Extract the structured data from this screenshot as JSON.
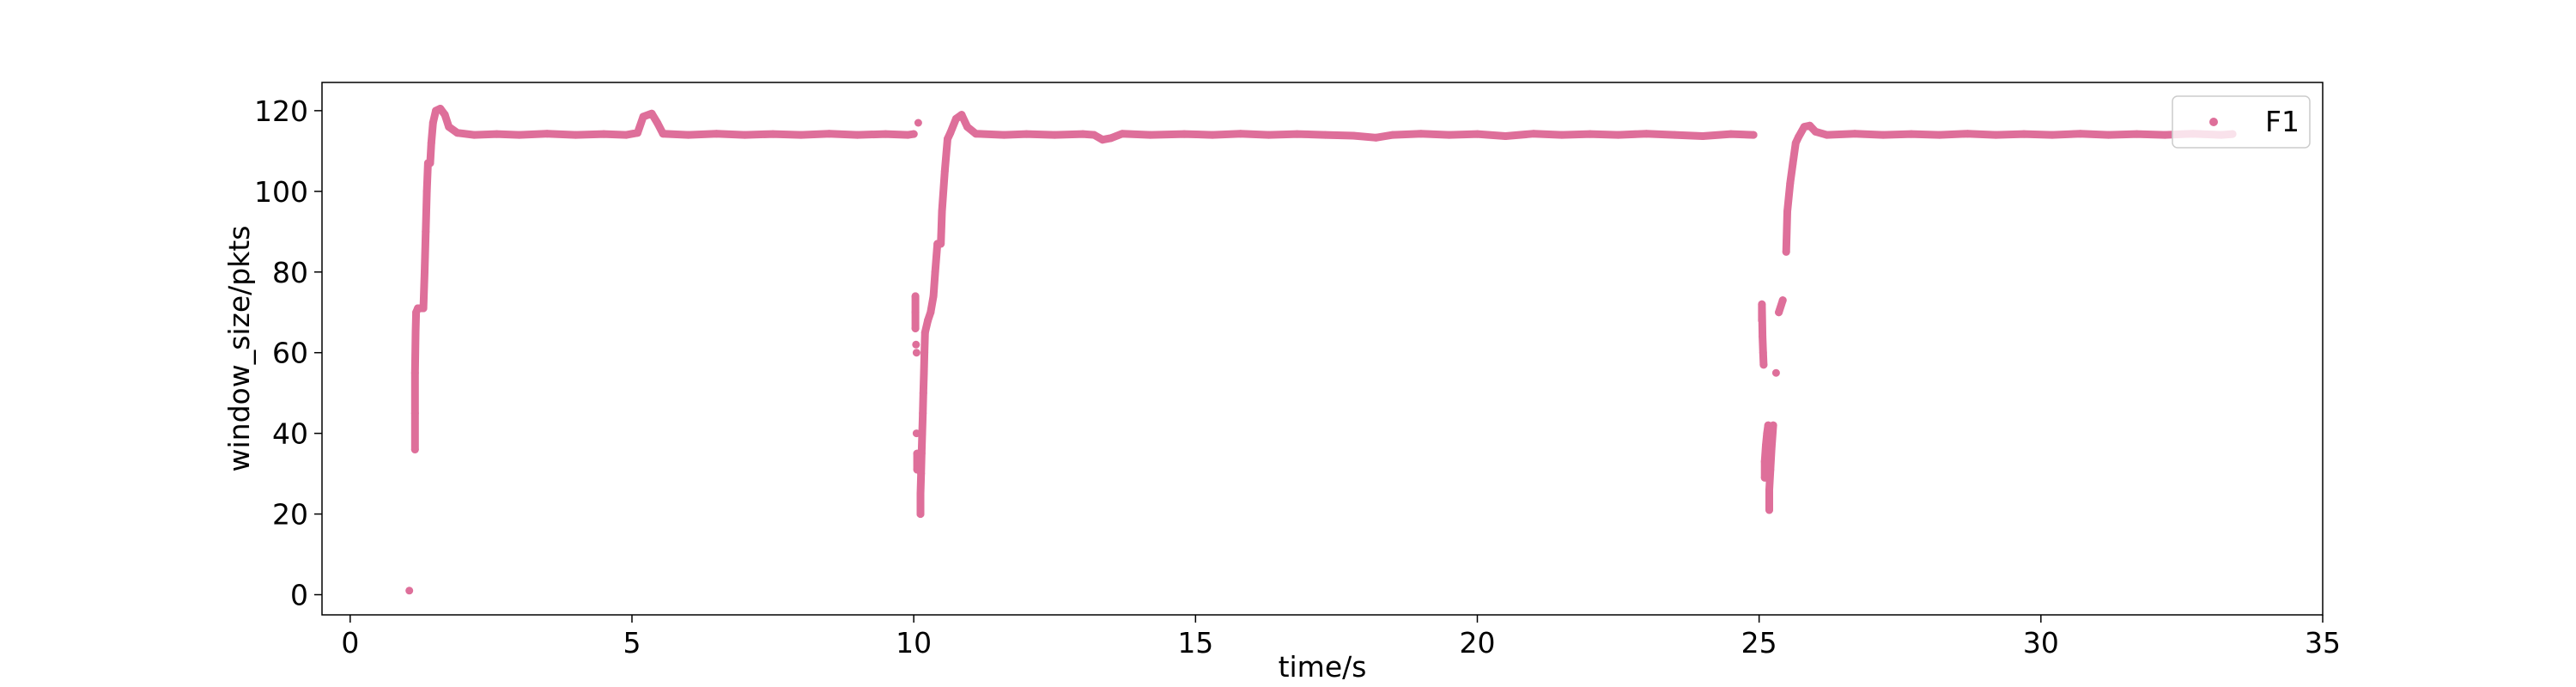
{
  "chart_data": {
    "type": "scatter",
    "xlabel": "time/s",
    "ylabel": "window_size/pkts",
    "xlim": [
      -0.5,
      35
    ],
    "ylim": [
      -5,
      127
    ],
    "xticks": [
      0,
      5,
      10,
      15,
      20,
      25,
      30,
      35
    ],
    "yticks": [
      0,
      20,
      40,
      60,
      80,
      100,
      120
    ],
    "grid": false,
    "legend": "top-right",
    "series": [
      {
        "name": "F1",
        "color": "#de6f9a",
        "points": [
          [
            1.05,
            1
          ],
          [
            1.15,
            36
          ],
          [
            1.15,
            45
          ],
          [
            1.15,
            55
          ],
          [
            1.16,
            65
          ],
          [
            1.17,
            70
          ],
          [
            1.2,
            71
          ],
          [
            1.3,
            71
          ],
          [
            1.32,
            80
          ],
          [
            1.34,
            90
          ],
          [
            1.36,
            100
          ],
          [
            1.38,
            107
          ],
          [
            1.42,
            107
          ],
          [
            1.44,
            112
          ],
          [
            1.47,
            117
          ],
          [
            1.52,
            120
          ],
          [
            1.6,
            120.5
          ],
          [
            1.68,
            119
          ],
          [
            1.75,
            116
          ],
          [
            1.9,
            114.5
          ],
          [
            2.2,
            114
          ],
          [
            2.6,
            114.2
          ],
          [
            3.0,
            114
          ],
          [
            3.5,
            114.3
          ],
          [
            4.0,
            114
          ],
          [
            4.5,
            114.2
          ],
          [
            4.9,
            114
          ],
          [
            5.1,
            114.5
          ],
          [
            5.2,
            118.5
          ],
          [
            5.35,
            119.3
          ],
          [
            5.45,
            117
          ],
          [
            5.55,
            114.3
          ],
          [
            6.0,
            114
          ],
          [
            6.5,
            114.3
          ],
          [
            7.0,
            114
          ],
          [
            7.5,
            114.2
          ],
          [
            8.0,
            114
          ],
          [
            8.5,
            114.3
          ],
          [
            9.0,
            114
          ],
          [
            9.5,
            114.2
          ],
          [
            9.9,
            114
          ],
          [
            10.0,
            114.2
          ],
          [
            10.08,
            117
          ],
          [
            10.03,
            74
          ],
          [
            10.03,
            70
          ],
          [
            10.03,
            66
          ],
          [
            10.04,
            62
          ],
          [
            10.05,
            60
          ],
          [
            10.05,
            40
          ],
          [
            10.06,
            35
          ],
          [
            10.06,
            31
          ],
          [
            10.12,
            20
          ],
          [
            10.12,
            25
          ],
          [
            10.13,
            30
          ],
          [
            10.14,
            35
          ],
          [
            10.15,
            40
          ],
          [
            10.16,
            45
          ],
          [
            10.17,
            50
          ],
          [
            10.18,
            55
          ],
          [
            10.19,
            60
          ],
          [
            10.2,
            65
          ],
          [
            10.25,
            68
          ],
          [
            10.3,
            70
          ],
          [
            10.35,
            74
          ],
          [
            10.38,
            80
          ],
          [
            10.42,
            87
          ],
          [
            10.48,
            87
          ],
          [
            10.5,
            95
          ],
          [
            10.55,
            105
          ],
          [
            10.6,
            113
          ],
          [
            10.65,
            114.5
          ],
          [
            10.75,
            118
          ],
          [
            10.85,
            119
          ],
          [
            10.95,
            116
          ],
          [
            11.1,
            114.3
          ],
          [
            11.6,
            114
          ],
          [
            12.0,
            114.2
          ],
          [
            12.5,
            114
          ],
          [
            13.0,
            114.2
          ],
          [
            13.2,
            114
          ],
          [
            13.35,
            112.8
          ],
          [
            13.5,
            113.2
          ],
          [
            13.7,
            114.3
          ],
          [
            14.2,
            114
          ],
          [
            14.8,
            114.2
          ],
          [
            15.3,
            114
          ],
          [
            15.8,
            114.3
          ],
          [
            16.3,
            114
          ],
          [
            16.8,
            114.2
          ],
          [
            17.3,
            114
          ],
          [
            17.8,
            113.8
          ],
          [
            18.2,
            113.3
          ],
          [
            18.5,
            114
          ],
          [
            19.0,
            114.3
          ],
          [
            19.5,
            114
          ],
          [
            20.0,
            114.2
          ],
          [
            20.5,
            113.7
          ],
          [
            21.0,
            114.3
          ],
          [
            21.5,
            114
          ],
          [
            22.0,
            114.2
          ],
          [
            22.5,
            114
          ],
          [
            23.0,
            114.3
          ],
          [
            23.5,
            114
          ],
          [
            24.0,
            113.7
          ],
          [
            24.5,
            114.2
          ],
          [
            24.9,
            114
          ],
          [
            25.05,
            72
          ],
          [
            25.05,
            68
          ],
          [
            25.06,
            64
          ],
          [
            25.07,
            60
          ],
          [
            25.08,
            57
          ],
          [
            25.1,
            29
          ],
          [
            25.1,
            33
          ],
          [
            25.12,
            37
          ],
          [
            25.14,
            40
          ],
          [
            25.16,
            42
          ],
          [
            25.18,
            21
          ],
          [
            25.18,
            26
          ],
          [
            25.2,
            31
          ],
          [
            25.22,
            36
          ],
          [
            25.25,
            42
          ],
          [
            25.3,
            55
          ],
          [
            25.35,
            70
          ],
          [
            25.42,
            73
          ],
          [
            25.48,
            85
          ],
          [
            25.5,
            95
          ],
          [
            25.55,
            102
          ],
          [
            25.6,
            107
          ],
          [
            25.65,
            112
          ],
          [
            25.7,
            113.5
          ],
          [
            25.8,
            116
          ],
          [
            25.9,
            116.3
          ],
          [
            26.0,
            114.8
          ],
          [
            26.2,
            114
          ],
          [
            26.7,
            114.3
          ],
          [
            27.2,
            114
          ],
          [
            27.7,
            114.2
          ],
          [
            28.2,
            114
          ],
          [
            28.7,
            114.3
          ],
          [
            29.2,
            114
          ],
          [
            29.7,
            114.2
          ],
          [
            30.2,
            114
          ],
          [
            30.7,
            114.3
          ],
          [
            31.2,
            114
          ],
          [
            31.7,
            114.2
          ],
          [
            32.2,
            114
          ],
          [
            32.7,
            114.3
          ],
          [
            33.2,
            114
          ],
          [
            33.4,
            114.2
          ]
        ]
      }
    ]
  }
}
